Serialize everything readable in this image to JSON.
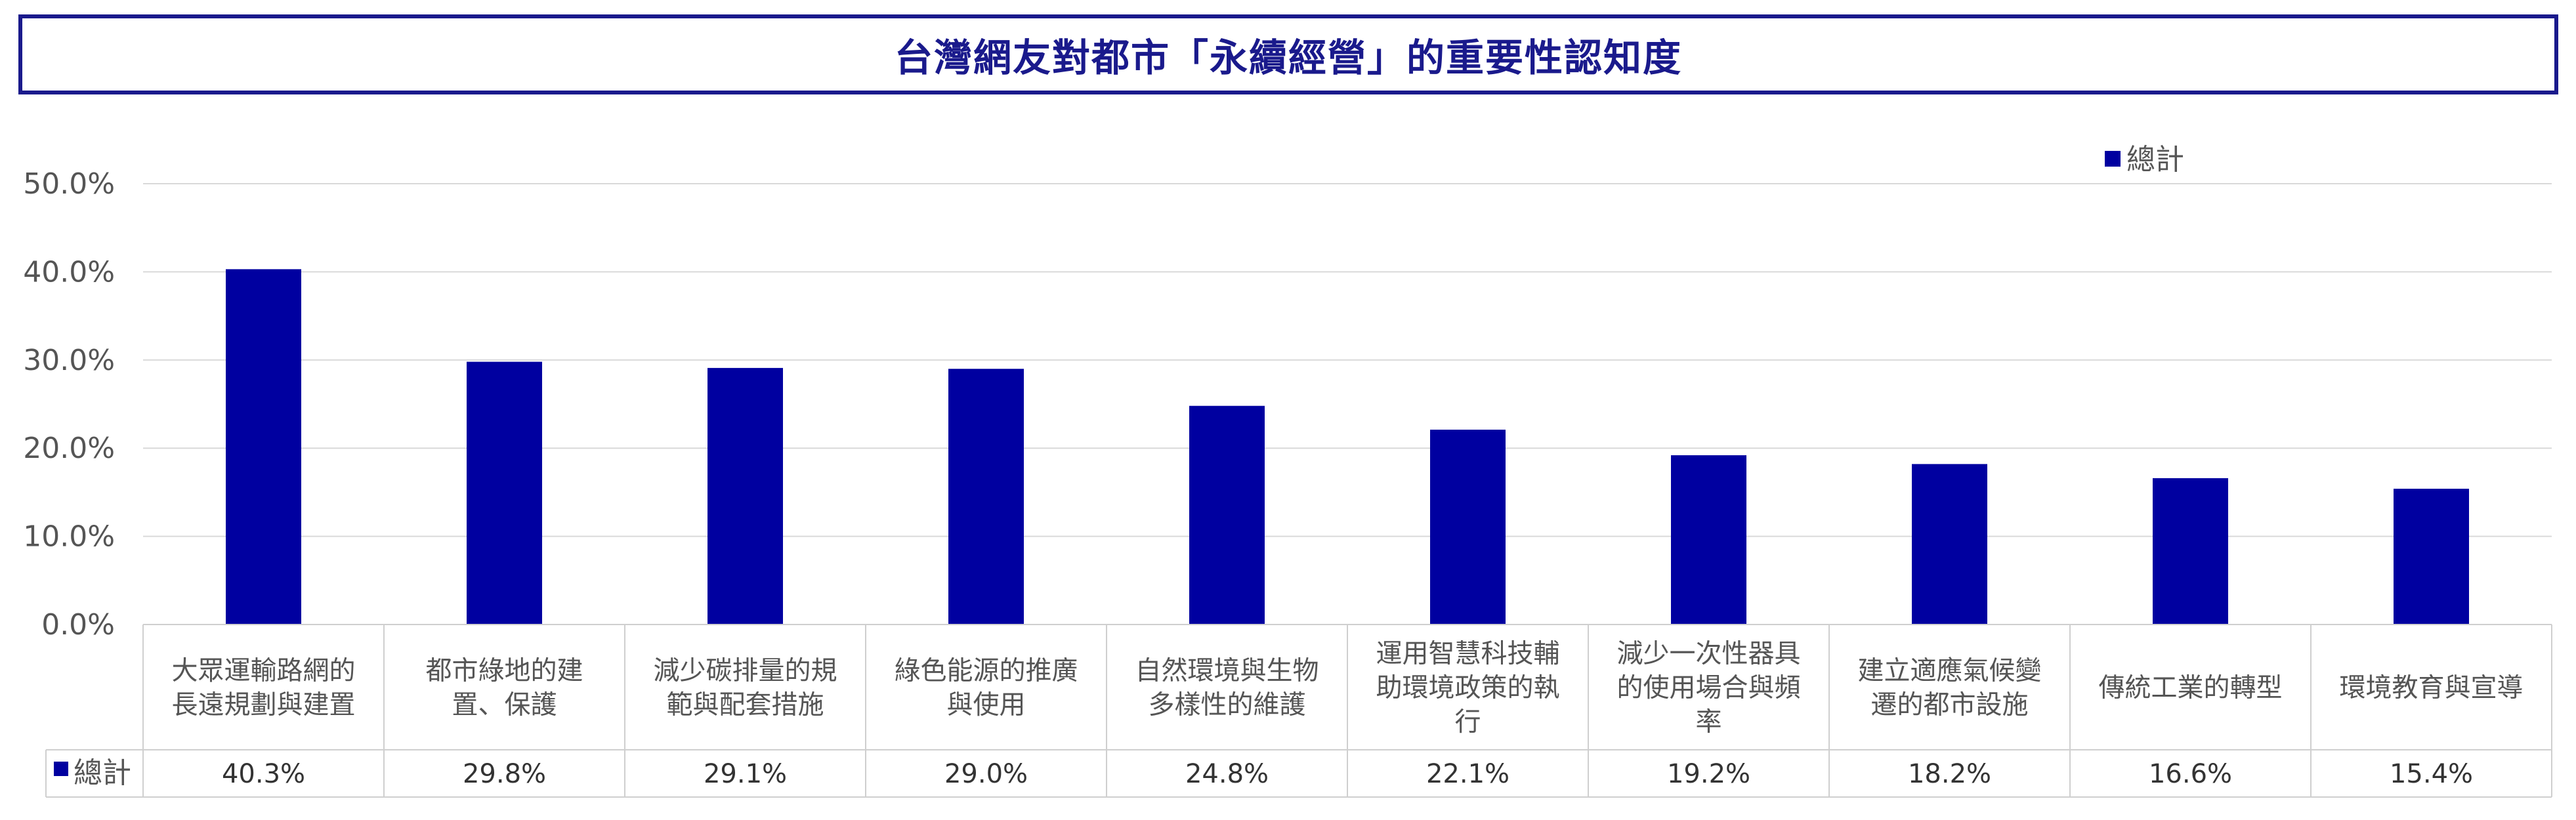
{
  "chart_data": {
    "type": "bar",
    "title": "台灣網友對都市「永續經營」的重要性認知度",
    "categories": [
      [
        "大眾運輸路網的",
        "長遠規劃與建置"
      ],
      [
        "都市綠地的建",
        "置、保護"
      ],
      [
        "減少碳排量的規",
        "範與配套措施"
      ],
      [
        "綠色能源的推廣",
        "與使用"
      ],
      [
        "自然環境與生物",
        "多樣性的維護"
      ],
      [
        "運用智慧科技輔",
        "助環境政策的執",
        "行"
      ],
      [
        "減少一次性器具",
        "的使用場合與頻",
        "率"
      ],
      [
        "建立適應氣候變",
        "遷的都市設施"
      ],
      [
        "傳統工業的轉型"
      ],
      [
        "環境教育與宣導"
      ]
    ],
    "series": [
      {
        "name": "總計",
        "values": [
          40.3,
          29.8,
          29.1,
          29.0,
          24.8,
          22.1,
          19.2,
          18.2,
          16.6,
          15.4
        ],
        "labels": [
          "40.3%",
          "29.8%",
          "29.1%",
          "29.0%",
          "24.8%",
          "22.1%",
          "19.2%",
          "18.2%",
          "16.6%",
          "15.4%"
        ],
        "color": "#0000a0"
      }
    ],
    "ylim": [
      0,
      50
    ],
    "yticks": [
      0,
      10,
      20,
      30,
      40,
      50
    ],
    "ytick_labels": [
      "0.0%",
      "10.0%",
      "20.0%",
      "30.0%",
      "40.0%",
      "50.0%"
    ],
    "legend_position": "top-right",
    "grid": true,
    "data_table": true
  }
}
